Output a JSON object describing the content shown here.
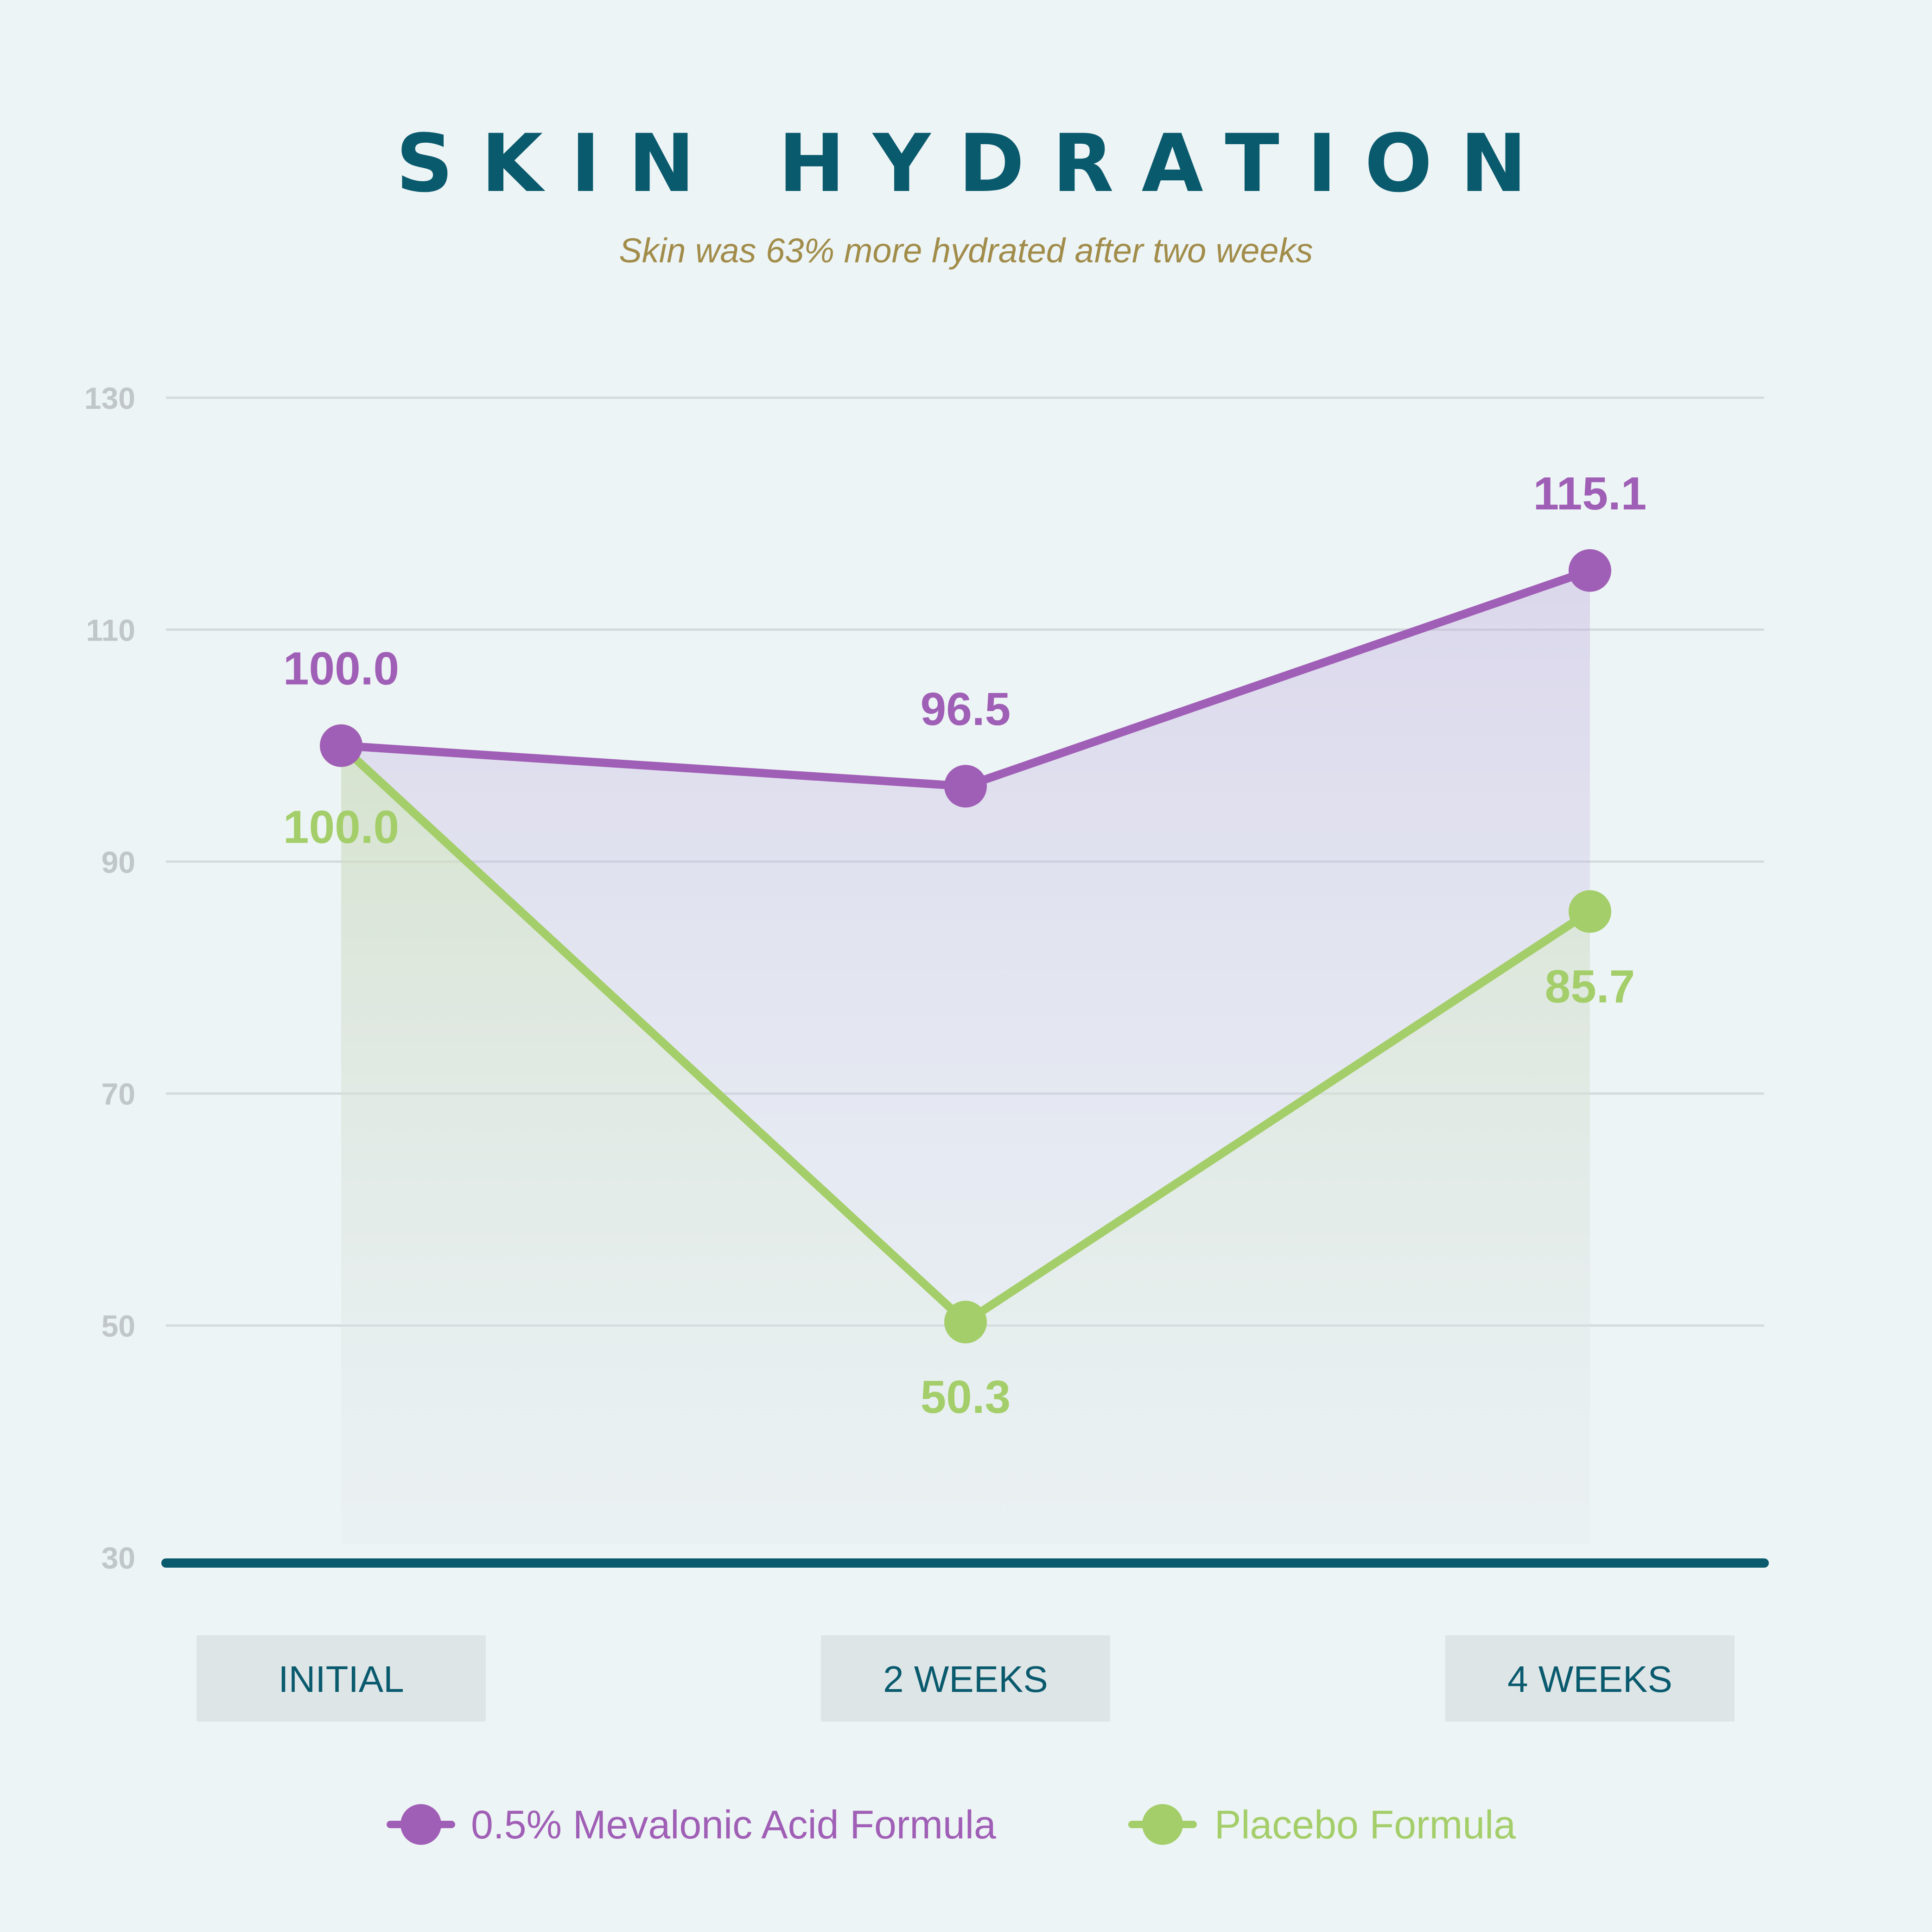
{
  "chart_data": {
    "type": "line",
    "title": "SKIN HYDRATION",
    "subtitle": "Skin was 63% more hydrated after two weeks",
    "categories": [
      "INITIAL",
      "2 WEEKS",
      "4 WEEKS"
    ],
    "y_ticks": [
      "130",
      "110",
      "90",
      "70",
      "50",
      "30"
    ],
    "ylim": [
      30,
      130
    ],
    "grid": true,
    "legend_position": "bottom",
    "series": [
      {
        "name": "0.5% Mevalonic Acid Formula",
        "values": [
          100.0,
          96.5,
          115.1
        ],
        "labels": [
          "100.0",
          "96.5",
          "115.1"
        ],
        "color": "#a05fb6",
        "label_position": "above"
      },
      {
        "name": "Placebo Formula",
        "values": [
          100.0,
          50.3,
          85.7
        ],
        "labels": [
          "100.0",
          "50.3",
          "85.7"
        ],
        "color": "#a4ce6a",
        "label_position": "below"
      }
    ],
    "colors": {
      "title": "#0a5a6e",
      "subtitle": "#a18c4a",
      "axis": "#0a5a6e",
      "grid": "#d4dbde",
      "tick_text": "#c0c6c9",
      "category_box": "#dde5e7",
      "category_text": "#0a5a6e"
    }
  }
}
